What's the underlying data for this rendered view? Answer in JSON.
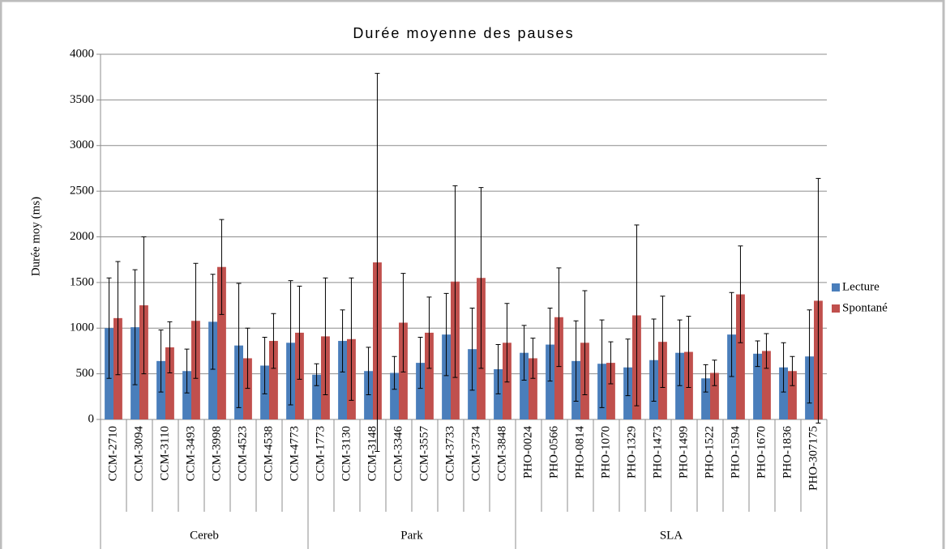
{
  "chart_data": {
    "type": "bar",
    "title": "Durée moyenne des pauses",
    "y_label": "Durée moy (ms)",
    "groups": [
      {
        "name": "Cereb",
        "categories": [
          "CCM-2710",
          "CCM-3094",
          "CCM-3110",
          "CCM-3493",
          "CCM-3998",
          "CCM-4523",
          "CCM-4538",
          "CCM-4773"
        ]
      },
      {
        "name": "Park",
        "categories": [
          "CCM-1773",
          "CCM-3130",
          "CCM-3148",
          "CCM-3346",
          "CCM-3557",
          "CCM-3733",
          "CCM-3734",
          "CCM-3848"
        ]
      },
      {
        "name": "SLA",
        "categories": [
          "PHO-0024",
          "PHO-0566",
          "PHO-0814",
          "PHO-1070",
          "PHO-1329",
          "PHO-1473",
          "PHO-1499",
          "PHO-1522",
          "PHO-1594",
          "PHO-1670",
          "PHO-1836",
          "PHO-307175"
        ]
      }
    ],
    "series": [
      {
        "name": "Lecture",
        "color": "#4a7ebb",
        "values": [
          1000,
          1010,
          640,
          530,
          1070,
          810,
          590,
          840,
          490,
          860,
          530,
          510,
          620,
          930,
          770,
          550,
          730,
          820,
          640,
          610,
          570,
          650,
          730,
          450,
          930,
          720,
          570,
          690
        ],
        "errors": [
          550,
          630,
          340,
          240,
          520,
          680,
          310,
          680,
          120,
          340,
          260,
          180,
          280,
          450,
          450,
          270,
          300,
          400,
          440,
          480,
          310,
          450,
          360,
          150,
          460,
          140,
          270,
          510
        ]
      },
      {
        "name": "Spontané",
        "color": "#c0504d",
        "values": [
          1110,
          1250,
          790,
          1080,
          1670,
          670,
          860,
          950,
          910,
          880,
          1720,
          1060,
          950,
          1510,
          1550,
          840,
          670,
          1120,
          840,
          620,
          1140,
          850,
          740,
          510,
          1370,
          750,
          530,
          1300
        ],
        "errors": [
          620,
          750,
          280,
          630,
          520,
          330,
          300,
          510,
          640,
          670,
          2070,
          540,
          390,
          1050,
          990,
          430,
          220,
          540,
          570,
          230,
          990,
          500,
          390,
          140,
          530,
          190,
          160,
          1340
        ]
      }
    ],
    "ylim": [
      0,
      4000
    ],
    "yticks": [
      0,
      500,
      1000,
      1500,
      2000,
      2500,
      3000,
      3500,
      4000
    ],
    "grid": true,
    "legend": "right"
  }
}
